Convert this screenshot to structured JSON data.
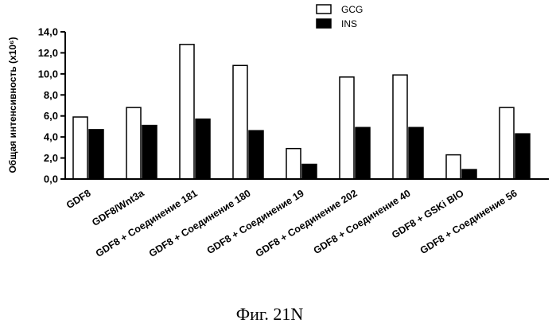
{
  "chart_data": {
    "type": "bar",
    "ylabel": "Общая интенсивность (x10⁶)",
    "ylim": [
      0,
      14
    ],
    "yticks": [
      "0,0",
      "2,0",
      "4,0",
      "6,0",
      "8,0",
      "10,0",
      "12,0",
      "14,0"
    ],
    "legend": "top-right",
    "grid": false,
    "categories": [
      "GDF8",
      "GDF8/Wnt3a",
      "GDF8 + Соединение 181",
      "GDF8 + Соединение 180",
      "GDF8 + Соединение 19",
      "GDF8 + Соединение 202",
      "GDF8 + Соединение 40",
      "GDF8 + GSKi BIO",
      "GDF8 + Соединение 56"
    ],
    "series": [
      {
        "name": "GCG",
        "color": "#ffffff",
        "values": [
          5.9,
          6.8,
          12.8,
          10.8,
          2.9,
          9.7,
          9.9,
          2.3,
          6.8
        ]
      },
      {
        "name": "INS",
        "color": "#000000",
        "values": [
          4.7,
          5.1,
          5.7,
          4.6,
          1.4,
          4.9,
          4.9,
          0.9,
          4.3
        ]
      }
    ]
  },
  "caption": "Фиг. 21N"
}
